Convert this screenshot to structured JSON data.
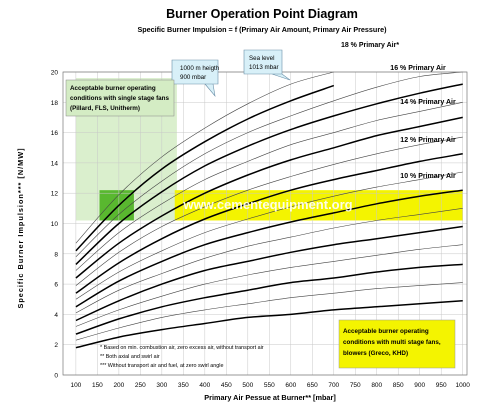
{
  "chart_data": {
    "type": "line",
    "title": "Burner Operation Point Diagram",
    "subtitle": "Specific Burner Impulsion = f (Primary Air Amount, Primary Air Pressure)",
    "xlabel": "Primary Air Pessue at Burner** [mbar]",
    "ylabel": "Specific Burner Impulsion*** [N/MW]",
    "xlim": [
      70,
      1010
    ],
    "ylim": [
      0,
      20
    ],
    "x_ticks": [
      "100",
      "150",
      "200",
      "250",
      "300",
      "350",
      "400",
      "450",
      "500",
      "550",
      "600",
      "650",
      "700",
      "750",
      "800",
      "850",
      "900",
      "950",
      "1000"
    ],
    "y_ticks": [
      "0",
      "2",
      "4",
      "6",
      "8",
      "10",
      "12",
      "14",
      "16",
      "18",
      "20"
    ],
    "grid": true,
    "series": [
      {
        "name": "18 % Primary Air*",
        "x": [
          100,
          200,
          300,
          400,
          500,
          600,
          700
        ],
        "y": [
          8.2,
          11.2,
          13.6,
          15.4,
          16.9,
          18.1,
          19.1
        ]
      },
      {
        "name": "16 % Primary Air",
        "x": [
          100,
          200,
          300,
          400,
          500,
          600,
          700,
          800,
          900,
          1000
        ],
        "y": [
          7.3,
          10.0,
          12.1,
          13.8,
          15.1,
          16.2,
          17.1,
          17.9,
          18.6,
          19.2
        ]
      },
      {
        "name": "14 % Primary Air",
        "x": [
          100,
          200,
          300,
          400,
          500,
          600,
          700,
          800,
          900,
          1000
        ],
        "y": [
          6.4,
          8.7,
          10.5,
          12.0,
          13.2,
          14.2,
          15.0,
          15.8,
          16.4,
          17.0
        ]
      },
      {
        "name": "12 % Primary Air",
        "x": [
          100,
          200,
          300,
          400,
          500,
          600,
          700,
          800,
          900,
          1000
        ],
        "y": [
          5.4,
          7.4,
          9.0,
          10.3,
          11.3,
          12.2,
          12.9,
          13.5,
          14.1,
          14.6
        ]
      },
      {
        "name": "10 % Primary Air",
        "x": [
          100,
          200,
          300,
          400,
          500,
          600,
          700,
          800,
          900,
          1000
        ],
        "y": [
          4.5,
          6.2,
          7.5,
          8.6,
          9.4,
          10.1,
          10.7,
          11.3,
          11.8,
          12.2
        ]
      },
      {
        "name": "",
        "x": [
          100,
          200,
          300,
          400,
          500,
          600,
          700,
          800,
          900,
          1000
        ],
        "y": [
          3.6,
          4.9,
          6.0,
          6.9,
          7.5,
          8.1,
          8.6,
          9.0,
          9.4,
          9.8
        ]
      },
      {
        "name": "",
        "x": [
          100,
          200,
          300,
          400,
          500,
          600,
          700,
          800,
          900,
          1000
        ],
        "y": [
          2.7,
          3.7,
          4.5,
          5.1,
          5.6,
          6.1,
          6.4,
          6.8,
          7.1,
          7.3
        ]
      },
      {
        "name": "",
        "x": [
          100,
          200,
          300,
          400,
          500,
          600,
          700,
          800,
          900,
          1000
        ],
        "y": [
          1.8,
          2.5,
          3.0,
          3.4,
          3.8,
          4.0,
          4.3,
          4.5,
          4.7,
          4.9
        ]
      }
    ],
    "thin_series": [
      {
        "x": [
          100,
          200,
          300,
          400,
          500,
          600,
          700
        ],
        "y": [
          8.7,
          11.9,
          14.4,
          16.3,
          17.9,
          19.2,
          20.0
        ]
      },
      {
        "x": [
          100,
          200,
          300,
          400,
          500,
          600,
          700,
          800,
          900,
          1000
        ],
        "y": [
          7.8,
          10.6,
          12.8,
          14.6,
          16.0,
          17.1,
          18.1,
          19.0,
          19.7,
          20.0
        ]
      },
      {
        "x": [
          100,
          200,
          300,
          400,
          500,
          600,
          700,
          800,
          900,
          1000
        ],
        "y": [
          6.9,
          9.4,
          11.3,
          12.9,
          14.1,
          15.2,
          16.0,
          16.8,
          17.4,
          18.0
        ]
      },
      {
        "x": [
          100,
          200,
          300,
          400,
          500,
          600,
          700,
          800,
          900,
          1000
        ],
        "y": [
          5.9,
          8.1,
          9.8,
          11.1,
          12.2,
          13.1,
          13.9,
          14.6,
          15.2,
          15.7
        ]
      },
      {
        "x": [
          100,
          200,
          300,
          400,
          500,
          600,
          700,
          800,
          900,
          1000
        ],
        "y": [
          5.0,
          6.8,
          8.2,
          9.4,
          10.3,
          11.1,
          11.8,
          12.4,
          12.9,
          13.4
        ]
      },
      {
        "x": [
          100,
          200,
          300,
          400,
          500,
          600,
          700,
          800,
          900,
          1000
        ],
        "y": [
          4.1,
          5.6,
          6.7,
          7.7,
          8.5,
          9.1,
          9.7,
          10.2,
          10.6,
          11.0
        ]
      },
      {
        "x": [
          100,
          200,
          300,
          400,
          500,
          600,
          700,
          800,
          900,
          1000
        ],
        "y": [
          3.2,
          4.3,
          5.2,
          6.0,
          6.6,
          7.1,
          7.5,
          7.9,
          8.3,
          8.6
        ]
      },
      {
        "x": [
          100,
          200,
          300,
          400,
          500,
          600,
          700,
          800,
          900,
          1000
        ],
        "y": [
          2.3,
          3.1,
          3.8,
          4.3,
          4.7,
          5.1,
          5.4,
          5.7,
          5.9,
          6.1
        ]
      }
    ],
    "regions": [
      {
        "x": [
          100,
          335
        ],
        "y": [
          10.2,
          19.6
        ],
        "color": "#d4ecc4",
        "opacity": 0.85
      },
      {
        "x": [
          330,
          1000
        ],
        "y": [
          10.2,
          12.2
        ],
        "color": "#f4f400",
        "opacity": 1
      },
      {
        "x": [
          155,
          235
        ],
        "y": [
          10.2,
          12.2
        ],
        "color": "#59b82f",
        "opacity": 1
      }
    ],
    "annotations": {
      "callout_1000m": [
        "1000 m heigth",
        "900 mbar"
      ],
      "callout_sea": [
        "Sea level",
        "1013 mbar"
      ],
      "green_box": [
        "Acceptable burner operating",
        "conditions with single stage fans",
        "(Pillard, FLS, Unitherm)"
      ],
      "yellow_box": [
        "Acceptable burner operating",
        "conditions with multi stage fans,",
        "blowers (Greco, KHD)"
      ],
      "footnotes": [
        "*  Based on min. combustion air, zero excess air, without transport air",
        "** Both axial and swirl air",
        "*** Without transport air and fuel, at zero swirl angle"
      ],
      "watermark": "www.cementequipment.org"
    },
    "colors": {
      "green_region": "#d4ecc4",
      "green_bar": "#59b82f",
      "yellow_band": "#f4f400",
      "callout": "#d8f0f8",
      "watermark": "#ffffff"
    }
  }
}
